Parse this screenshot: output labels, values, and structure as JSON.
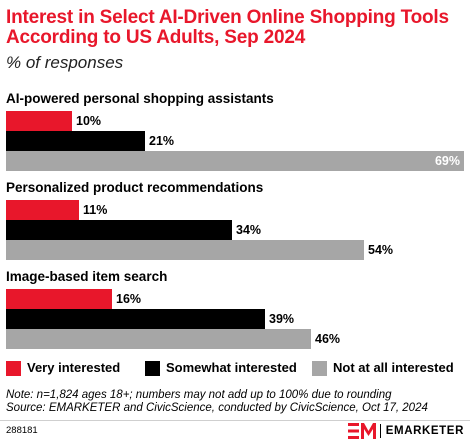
{
  "header": {
    "title": "Interest in Select AI-Driven Online Shopping Tools According to US Adults, Sep 2024",
    "subtitle": "% of responses"
  },
  "colors": {
    "very_interested": "#e8172b",
    "somewhat_interested": "#000000",
    "not_interested": "#a6a6a6",
    "title": "#e8172b"
  },
  "chart_data": {
    "type": "bar",
    "orientation": "horizontal",
    "title": "Interest in Select AI-Driven Online Shopping Tools According to US Adults, Sep 2024",
    "subtitle": "% of responses",
    "categories": [
      "AI-powered personal shopping assistants",
      "Personalized product recommendations",
      "Image-based item search"
    ],
    "series": [
      {
        "name": "Very interested",
        "values": [
          10,
          11,
          16
        ],
        "labels": [
          "10%",
          "11%",
          "16%"
        ]
      },
      {
        "name": "Somewhat interested",
        "values": [
          21,
          34,
          39
        ],
        "labels": [
          "21%",
          "34%",
          "39%"
        ]
      },
      {
        "name": "Not at all interested",
        "values": [
          69,
          54,
          46
        ],
        "labels": [
          "69%",
          "54%",
          "46%"
        ]
      }
    ],
    "xlim": [
      0,
      69
    ],
    "grid": false,
    "legend_position": "bottom"
  },
  "legend": [
    {
      "label": "Very interested"
    },
    {
      "label": "Somewhat interested"
    },
    {
      "label": "Not at all interested"
    }
  ],
  "footer": {
    "note": "Note: n=1,824 ages 18+; numbers may not add up to 100% due to rounding",
    "source": "Source: EMARKETER and CivicScience, conducted by CivicScience, Oct 17, 2024",
    "chart_id": "288181",
    "brand": "EMARKETER"
  }
}
